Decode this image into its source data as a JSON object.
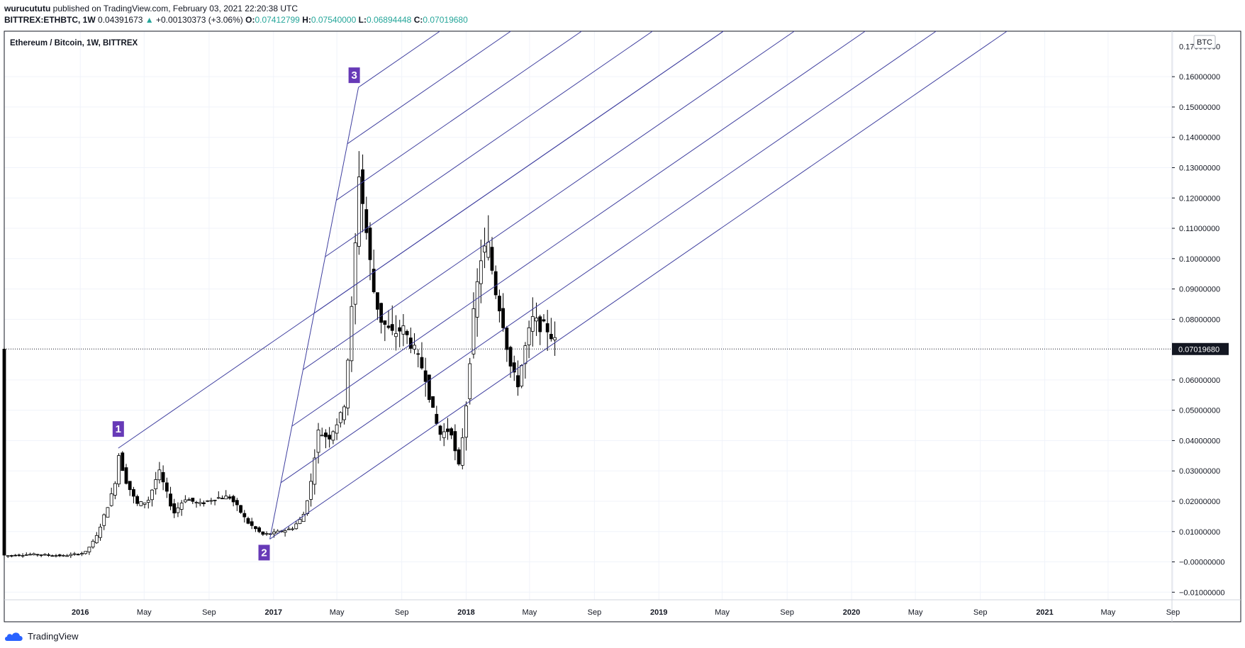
{
  "header": {
    "author": "wurucututu",
    "published_text": "published on TradingView.com, February 03, 2021 22:20:38 UTC",
    "symbol": "BITTREX:ETHBTC, 1W",
    "last": "0.04391673",
    "change": "+0.00130373 (+3.06%)",
    "open_label": "O:",
    "open": "0.07412799",
    "high_label": "H:",
    "high": "0.07540000",
    "low_label": "L:",
    "low": "0.06894448",
    "close_label": "C:",
    "close": "0.07019680"
  },
  "footer": {
    "brand": "TradingView"
  },
  "chart_data": {
    "type": "candlestick",
    "title": "Ethereum / Bitcoin, 1W, BITTREX",
    "currency_label": "BTC",
    "last_price_label": "0.07019680",
    "last_price": 0.0701968,
    "y_range": [
      -0.0125,
      0.175
    ],
    "x_range": [
      "2015-08-10",
      "2021-08-30"
    ],
    "y_ticks": [
      {
        "v": 0.16,
        "label": "0.16000000"
      },
      {
        "v": 0.15,
        "label": "0.15000000"
      },
      {
        "v": 0.14,
        "label": "0.14000000"
      },
      {
        "v": 0.13,
        "label": "0.13000000"
      },
      {
        "v": 0.12,
        "label": "0.12000000"
      },
      {
        "v": 0.11,
        "label": "0.11000000"
      },
      {
        "v": 0.1,
        "label": "0.10000000"
      },
      {
        "v": 0.09,
        "label": "0.09000000"
      },
      {
        "v": 0.08,
        "label": "0.08000000"
      },
      {
        "v": 0.06,
        "label": "0.06000000"
      },
      {
        "v": 0.05,
        "label": "0.05000000"
      },
      {
        "v": 0.04,
        "label": "0.04000000"
      },
      {
        "v": 0.03,
        "label": "0.03000000"
      },
      {
        "v": 0.02,
        "label": "0.02000000"
      },
      {
        "v": 0.01,
        "label": "0.01000000"
      },
      {
        "v": 0.0,
        "label": "−0.00000000"
      },
      {
        "v": -0.01,
        "label": "−0.01000000"
      }
    ],
    "x_ticks": [
      {
        "date": "2016-01-01",
        "label": "2016",
        "bold": true
      },
      {
        "date": "2016-05-01",
        "label": "May",
        "bold": false
      },
      {
        "date": "2016-09-01",
        "label": "Sep",
        "bold": false
      },
      {
        "date": "2017-01-01",
        "label": "2017",
        "bold": true
      },
      {
        "date": "2017-05-01",
        "label": "May",
        "bold": false
      },
      {
        "date": "2017-09-01",
        "label": "Sep",
        "bold": false
      },
      {
        "date": "2018-01-01",
        "label": "2018",
        "bold": true
      },
      {
        "date": "2018-05-01",
        "label": "May",
        "bold": false
      },
      {
        "date": "2018-09-01",
        "label": "Sep",
        "bold": false
      },
      {
        "date": "2019-01-01",
        "label": "2019",
        "bold": true
      },
      {
        "date": "2019-05-01",
        "label": "May",
        "bold": false
      },
      {
        "date": "2019-09-01",
        "label": "Sep",
        "bold": false
      },
      {
        "date": "2020-01-01",
        "label": "2020",
        "bold": true
      },
      {
        "date": "2020-05-01",
        "label": "May",
        "bold": false
      },
      {
        "date": "2020-09-01",
        "label": "Sep",
        "bold": false
      },
      {
        "date": "2021-01-01",
        "label": "2021",
        "bold": true
      },
      {
        "date": "2021-05-01",
        "label": "May",
        "bold": false
      },
      {
        "date": "2021-09-01",
        "label": "Sep",
        "bold": false
      }
    ],
    "price_path": [
      [
        "2015-08-10",
        0.002
      ],
      [
        "2015-10-01",
        0.0025
      ],
      [
        "2015-12-01",
        0.002
      ],
      [
        "2016-01-10",
        0.003
      ],
      [
        "2016-01-31",
        0.008
      ],
      [
        "2016-02-21",
        0.018
      ],
      [
        "2016-03-06",
        0.025
      ],
      [
        "2016-03-13",
        0.036
      ],
      [
        "2016-03-27",
        0.027
      ],
      [
        "2016-04-17",
        0.019
      ],
      [
        "2016-05-08",
        0.02
      ],
      [
        "2016-05-29",
        0.03
      ],
      [
        "2016-06-12",
        0.023
      ],
      [
        "2016-06-26",
        0.016
      ],
      [
        "2016-07-17",
        0.021
      ],
      [
        "2016-08-14",
        0.019
      ],
      [
        "2016-09-11",
        0.021
      ],
      [
        "2016-10-09",
        0.0215
      ],
      [
        "2016-10-23",
        0.0185
      ],
      [
        "2016-11-13",
        0.013
      ],
      [
        "2016-12-11",
        0.009
      ],
      [
        "2017-01-01",
        0.0095
      ],
      [
        "2017-02-05",
        0.011
      ],
      [
        "2017-02-26",
        0.015
      ],
      [
        "2017-03-12",
        0.025
      ],
      [
        "2017-03-26",
        0.043
      ],
      [
        "2017-04-16",
        0.041
      ],
      [
        "2017-05-14",
        0.05
      ],
      [
        "2017-05-28",
        0.08
      ],
      [
        "2017-06-04",
        0.1
      ],
      [
        "2017-06-11",
        0.13
      ],
      [
        "2017-06-25",
        0.11
      ],
      [
        "2017-07-09",
        0.09
      ],
      [
        "2017-07-23",
        0.08
      ],
      [
        "2017-08-13",
        0.075
      ],
      [
        "2017-09-03",
        0.077
      ],
      [
        "2017-09-24",
        0.07
      ],
      [
        "2017-10-15",
        0.062
      ],
      [
        "2017-10-29",
        0.05
      ],
      [
        "2017-11-12",
        0.042
      ],
      [
        "2017-12-03",
        0.044
      ],
      [
        "2017-12-17",
        0.03
      ],
      [
        "2017-12-31",
        0.05
      ],
      [
        "2018-01-14",
        0.08
      ],
      [
        "2018-01-28",
        0.1
      ],
      [
        "2018-02-11",
        0.105
      ],
      [
        "2018-02-25",
        0.09
      ],
      [
        "2018-03-11",
        0.08
      ],
      [
        "2018-03-25",
        0.065
      ],
      [
        "2018-04-08",
        0.058
      ],
      [
        "2018-04-22",
        0.07
      ],
      [
        "2018-05-06",
        0.08
      ],
      [
        "2018-05-20",
        0.078
      ],
      [
        "2018-06-03",
        0.077
      ],
      [
        "2018-06-17",
        0.073
      ],
      [
        "2018-06-24",
        0.0702
      ]
    ],
    "pitchfan": {
      "points": [
        {
          "label": "1",
          "date": "2016-03-13",
          "price": 0.0375
        },
        {
          "label": "2",
          "date": "2016-12-25",
          "price": 0.0075
        },
        {
          "label": "3",
          "date": "2017-06-11",
          "price": 0.1565
        }
      ],
      "fractions": [
        0.0,
        0.125,
        0.25,
        0.375,
        0.5,
        0.625,
        0.75,
        0.875,
        1.0
      ]
    }
  }
}
